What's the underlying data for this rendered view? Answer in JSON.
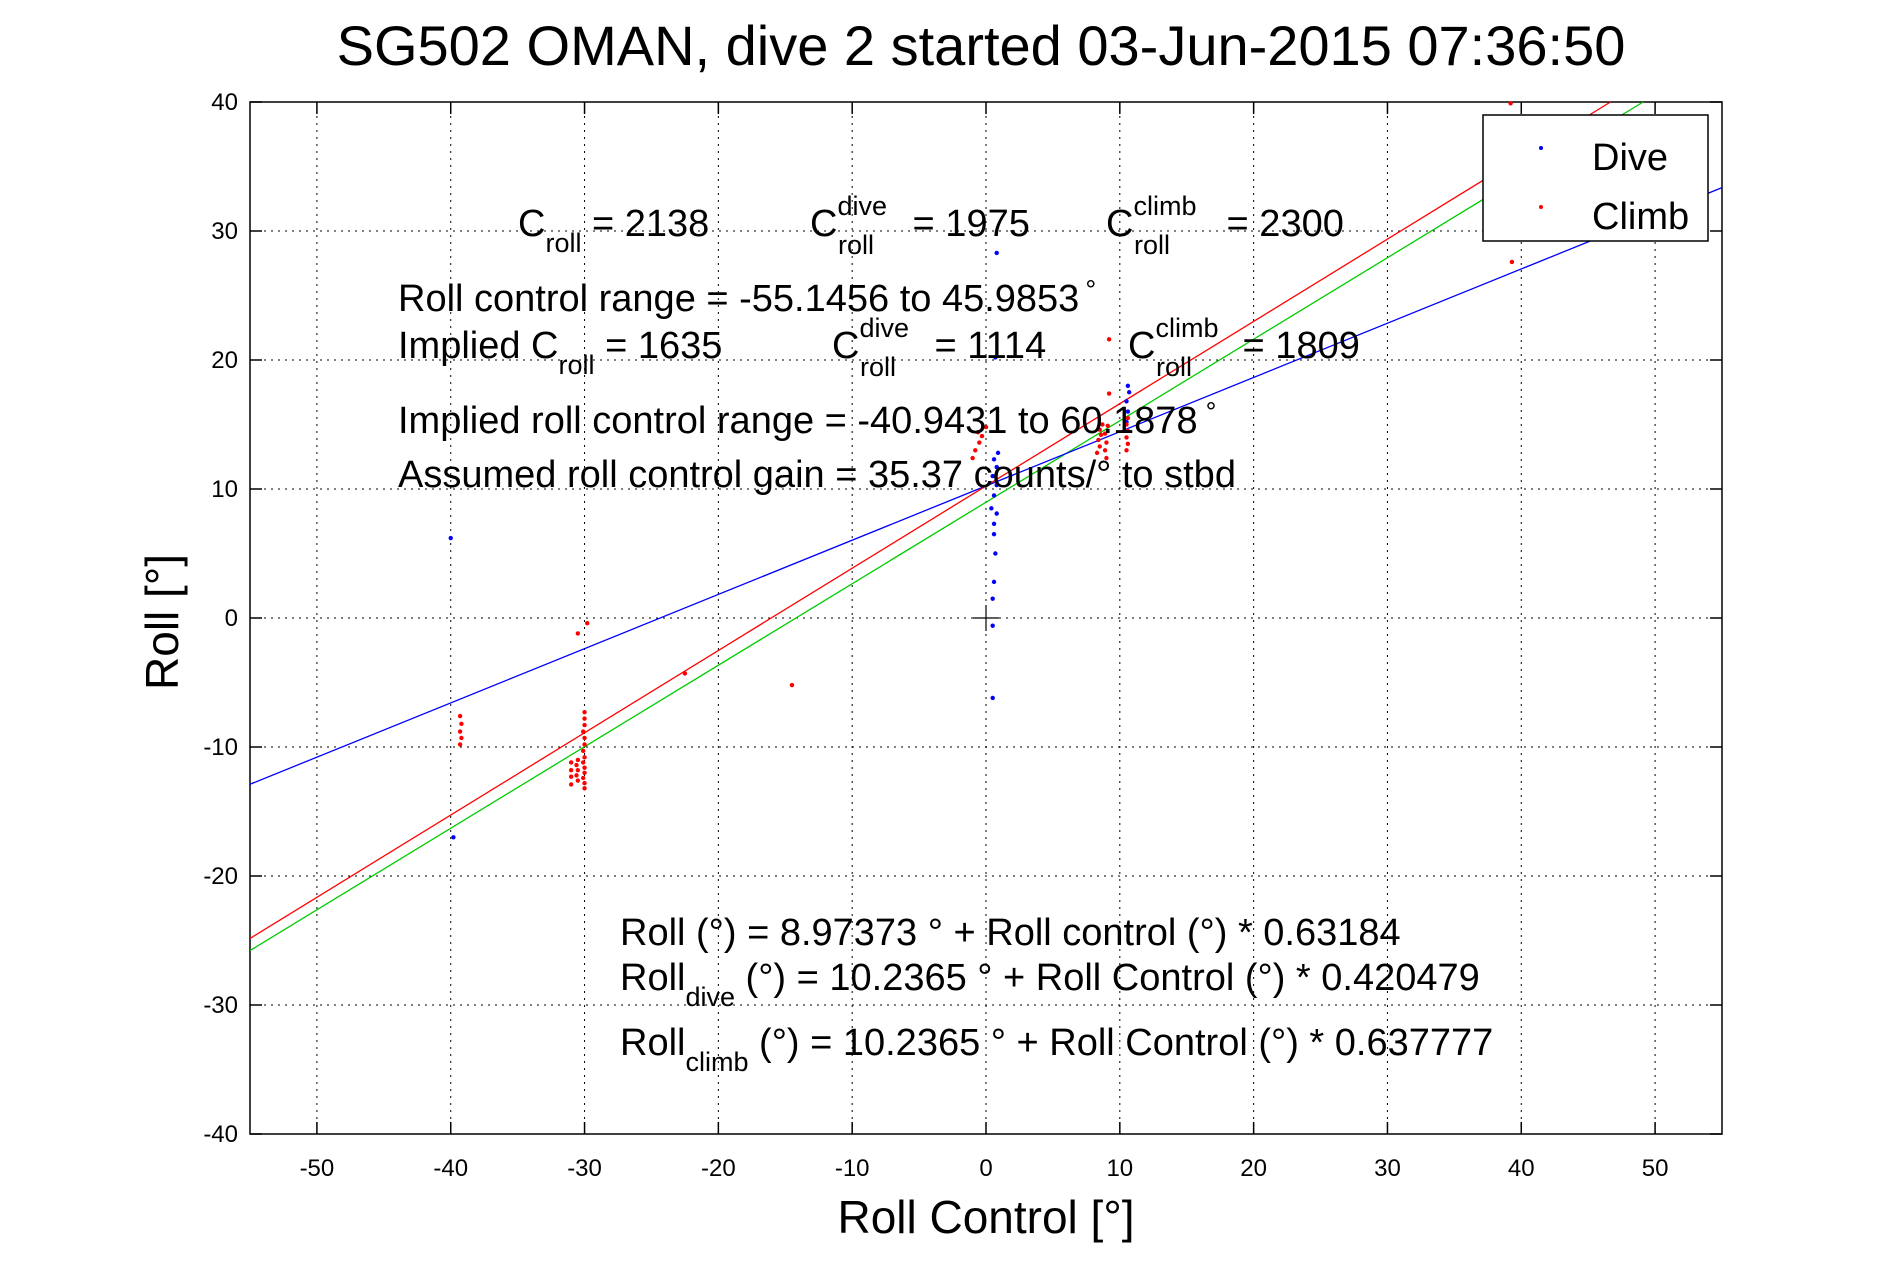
{
  "chart_data": {
    "type": "scatter",
    "title": "SG502 OMAN, dive 2 started 03-Jun-2015 07:36:50",
    "xlabel": "Roll Control [°]",
    "ylabel": "Roll [°]",
    "xlim": [
      -55,
      55
    ],
    "ylim": [
      -40,
      40
    ],
    "xticks": [
      -50,
      -40,
      -30,
      -20,
      -10,
      0,
      10,
      20,
      30,
      40,
      50
    ],
    "yticks": [
      -40,
      -30,
      -20,
      -10,
      0,
      10,
      20,
      30,
      40
    ],
    "xtick_labels": [
      "-50",
      "-40",
      "-30",
      "-20",
      "-10",
      "0",
      "10",
      "20",
      "30",
      "40",
      "50"
    ],
    "ytick_labels": [
      "-40",
      "-30",
      "-20",
      "-10",
      "0",
      "10",
      "20",
      "30",
      "40"
    ],
    "grid": true,
    "legend_position": "top-right",
    "colors": {
      "dive": "#0000ff",
      "climb": "#ff0000",
      "fit": "#00cc00"
    },
    "series": [
      {
        "name": "Dive",
        "color": "#0000ff",
        "points": [
          [
            -40,
            6.2
          ],
          [
            -39.8,
            -17.0
          ],
          [
            0.5,
            -6.2
          ],
          [
            0.5,
            -0.6
          ],
          [
            0.5,
            1.5
          ],
          [
            0.6,
            2.8
          ],
          [
            0.7,
            5.0
          ],
          [
            0.6,
            6.5
          ],
          [
            0.6,
            7.3
          ],
          [
            0.8,
            8.1
          ],
          [
            0.4,
            8.5
          ],
          [
            0.6,
            9.5
          ],
          [
            0.8,
            10.3
          ],
          [
            0.5,
            11.0
          ],
          [
            0.8,
            11.7
          ],
          [
            0.6,
            12.3
          ],
          [
            0.9,
            12.8
          ],
          [
            0.7,
            20.2
          ],
          [
            0.8,
            28.3
          ],
          [
            10.5,
            15.2
          ],
          [
            10.6,
            16.0
          ],
          [
            10.5,
            16.8
          ],
          [
            10.7,
            17.5
          ],
          [
            10.6,
            18.0
          ]
        ]
      },
      {
        "name": "Climb",
        "color": "#ff0000",
        "points": [
          [
            -39.3,
            -7.6
          ],
          [
            -39.2,
            -8.2
          ],
          [
            -39.3,
            -8.8
          ],
          [
            -39.2,
            -9.3
          ],
          [
            -39.3,
            -9.8
          ],
          [
            -30.5,
            -1.2
          ],
          [
            -29.8,
            -0.4
          ],
          [
            -30.0,
            -7.3
          ],
          [
            -30.0,
            -7.8
          ],
          [
            -30.0,
            -8.3
          ],
          [
            -30.1,
            -8.8
          ],
          [
            -30.0,
            -9.3
          ],
          [
            -30.0,
            -9.8
          ],
          [
            -30.1,
            -10.3
          ],
          [
            -30.0,
            -10.8
          ],
          [
            -30.1,
            -11.2
          ],
          [
            -30.0,
            -11.6
          ],
          [
            -30.0,
            -12.0
          ],
          [
            -30.1,
            -12.4
          ],
          [
            -30.0,
            -12.8
          ],
          [
            -30.0,
            -13.2
          ],
          [
            -30.5,
            -11.0
          ],
          [
            -30.6,
            -11.4
          ],
          [
            -30.5,
            -11.8
          ],
          [
            -30.6,
            -12.2
          ],
          [
            -30.5,
            -12.6
          ],
          [
            -31.0,
            -11.2
          ],
          [
            -31.0,
            -11.8
          ],
          [
            -31.0,
            -12.3
          ],
          [
            -31.0,
            -12.9
          ],
          [
            -22.5,
            -4.3
          ],
          [
            -14.5,
            -5.2
          ],
          [
            -1.0,
            12.4
          ],
          [
            -0.8,
            13.0
          ],
          [
            -0.5,
            13.6
          ],
          [
            -0.3,
            14.1
          ],
          [
            0.0,
            14.8
          ],
          [
            -0.6,
            14.4
          ],
          [
            8.3,
            12.8
          ],
          [
            8.5,
            13.3
          ],
          [
            8.4,
            13.8
          ],
          [
            8.6,
            14.2
          ],
          [
            8.5,
            14.6
          ],
          [
            8.7,
            15.0
          ],
          [
            8.9,
            13.0
          ],
          [
            9.0,
            13.6
          ],
          [
            8.9,
            14.3
          ],
          [
            9.1,
            14.9
          ],
          [
            9.0,
            12.4
          ],
          [
            9.2,
            21.6
          ],
          [
            9.2,
            17.4
          ],
          [
            10.5,
            13.0
          ],
          [
            10.6,
            13.5
          ],
          [
            10.5,
            14.0
          ],
          [
            10.6,
            14.5
          ],
          [
            10.5,
            15.0
          ],
          [
            10.6,
            15.5
          ],
          [
            39.2,
            39.9
          ],
          [
            39.3,
            27.6
          ]
        ]
      }
    ],
    "fit_lines": [
      {
        "label": "all",
        "color": "#00cc00",
        "intercept": 8.97373,
        "slope": 0.63184
      },
      {
        "label": "dive",
        "color": "#0000ff",
        "intercept": 10.2365,
        "slope": 0.420479
      },
      {
        "label": "climb",
        "color": "#ff0000",
        "intercept": 10.2365,
        "slope": 0.637777
      }
    ],
    "crosshair": [
      0,
      0
    ],
    "annotations": {
      "c_roll": "C",
      "c_roll_sub": "roll",
      "c_roll_value": " = 2138",
      "c_dive": "C",
      "c_dive_sup": "dive",
      "c_dive_sub": "roll",
      "c_dive_value": " = 1975",
      "c_climb": "C",
      "c_climb_sup": "climb",
      "c_climb_sub": "roll",
      "c_climb_value": " = 2300",
      "roll_control_range": "Roll control range = -55.1456 to 45.9853",
      "implied_c_roll_prefix": "Implied C",
      "implied_c_roll_sub": "roll",
      "implied_c_roll_value": " = 1635",
      "implied_c_dive": "C",
      "implied_c_dive_sup": "dive",
      "implied_c_dive_sub": "roll",
      "implied_c_dive_value": " = 1114",
      "implied_c_climb": "C",
      "implied_c_climb_sup": "climb",
      "implied_c_climb_sub": "roll",
      "implied_c_climb_value": " = 1809",
      "implied_range": "Implied roll control range = -40.9431 to 60.1878",
      "gain": "Assumed roll control gain = 35.37 counts/° to stbd",
      "degree_symbol": "°",
      "fit_all": "Roll (°) = 8.97373 ° + Roll control (°) * 0.63184",
      "fit_dive_prefix": "Roll",
      "fit_dive_sub": "dive",
      "fit_dive_rest": " (°) = 10.2365 ° + Roll Control (°) * 0.420479",
      "fit_climb_prefix": "Roll",
      "fit_climb_sub": "climb",
      "fit_climb_rest": " (°) = 10.2365 ° + Roll Control (°) * 0.637777"
    }
  }
}
